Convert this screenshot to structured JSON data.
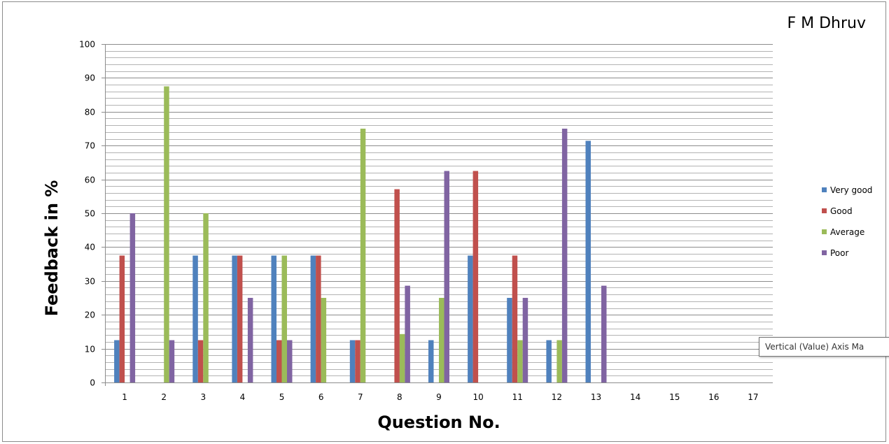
{
  "chart_data": {
    "type": "bar",
    "title": "F M Dhruv",
    "xlabel": "Question No.",
    "ylabel": "Feedback in %",
    "ylim": [
      0,
      100
    ],
    "y_ticks": [
      0,
      10,
      20,
      30,
      40,
      50,
      60,
      70,
      80,
      90,
      100
    ],
    "categories": [
      "1",
      "2",
      "3",
      "4",
      "5",
      "6",
      "7",
      "8",
      "9",
      "10",
      "11",
      "12",
      "13",
      "14",
      "15",
      "16",
      "17"
    ],
    "series": [
      {
        "name": "Very good",
        "color": "#4f81bd",
        "values": [
          12.5,
          0,
          37.5,
          37.5,
          37.5,
          37.5,
          12.5,
          0,
          12.5,
          37.5,
          25,
          12.5,
          71.4,
          null,
          null,
          null,
          null
        ]
      },
      {
        "name": "Good",
        "color": "#c0504d",
        "values": [
          37.5,
          0,
          12.5,
          37.5,
          12.5,
          37.5,
          12.5,
          57.1,
          0,
          62.5,
          37.5,
          0,
          0,
          null,
          null,
          null,
          null
        ]
      },
      {
        "name": "Average",
        "color": "#9bbb59",
        "values": [
          0,
          87.5,
          50,
          0,
          37.5,
          25,
          75,
          14.3,
          25,
          0,
          12.5,
          12.5,
          0,
          null,
          null,
          null,
          null
        ]
      },
      {
        "name": "Poor",
        "color": "#8064a2",
        "values": [
          50,
          12.5,
          0,
          25,
          12.5,
          0,
          0,
          28.6,
          62.5,
          0,
          25,
          75,
          28.6,
          null,
          null,
          null,
          null
        ]
      }
    ],
    "grid": true,
    "minor_grid": true,
    "legend_position": "right"
  },
  "tooltip": {
    "text": "Vertical (Value) Axis Ma"
  }
}
